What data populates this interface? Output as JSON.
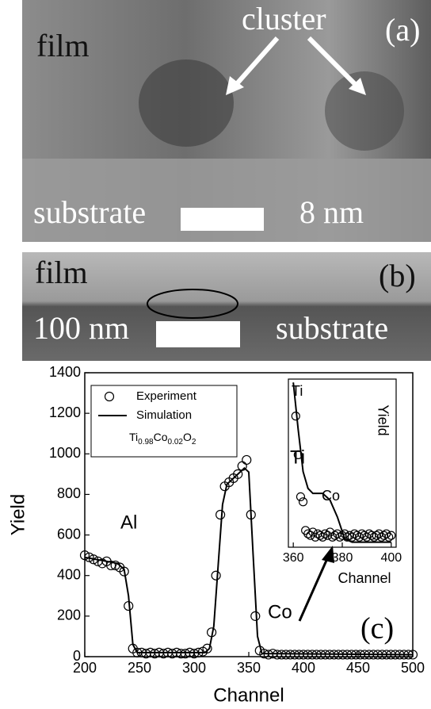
{
  "panels": [
    {
      "labels": [
        "film",
        "cluster",
        "(a)",
        "substrate",
        "8 nm"
      ]
    },
    {
      "labels": [
        "film",
        "(b)",
        "100 nm",
        "substrate"
      ]
    }
  ],
  "chart_data": [
    {
      "type": "line",
      "xlabel": "Channel",
      "ylabel": "Yield",
      "xlim": [
        200,
        500
      ],
      "ylim": [
        0,
        1400
      ],
      "xticks": [
        200,
        250,
        300,
        350,
        400,
        450,
        500
      ],
      "yticks": [
        0,
        200,
        400,
        600,
        800,
        1000,
        1200,
        1400
      ],
      "legend_note": [
        "Ti",
        "0.98",
        "Co",
        "0.02",
        "O",
        "2"
      ],
      "annotations": [
        "Al",
        "Ti",
        "Co",
        "(c)"
      ],
      "series": [
        {
          "name": "Experiment",
          "color": "#000000",
          "mode": "markers",
          "x": [
            200,
            204,
            208,
            212,
            216,
            220,
            224,
            228,
            232,
            236,
            240,
            244,
            248,
            252,
            256,
            260,
            264,
            268,
            272,
            276,
            280,
            284,
            288,
            292,
            296,
            300,
            304,
            308,
            312,
            316,
            320,
            324,
            328,
            332,
            336,
            340,
            344,
            348,
            352,
            356,
            360,
            364,
            368,
            372,
            376,
            380,
            384,
            388,
            392,
            396,
            400,
            404,
            408,
            412,
            416,
            420,
            424,
            428,
            432,
            436,
            440,
            444,
            448,
            452,
            456,
            460,
            464,
            468,
            472,
            476,
            480,
            484,
            488,
            492,
            496,
            500
          ],
          "values": [
            500,
            490,
            480,
            470,
            460,
            470,
            450,
            450,
            440,
            420,
            250,
            40,
            20,
            20,
            15,
            20,
            15,
            20,
            15,
            20,
            15,
            20,
            15,
            15,
            20,
            15,
            20,
            25,
            40,
            120,
            400,
            700,
            840,
            860,
            880,
            900,
            940,
            970,
            700,
            200,
            30,
            15,
            10,
            15,
            10,
            10,
            10,
            10,
            10,
            10,
            10,
            10,
            10,
            10,
            10,
            10,
            10,
            10,
            10,
            10,
            10,
            10,
            10,
            10,
            10,
            10,
            10,
            10,
            10,
            10,
            10,
            10,
            10,
            10,
            10,
            10
          ]
        },
        {
          "name": "Simulation",
          "color": "#000000",
          "mode": "lines",
          "x": [
            200,
            230,
            236,
            240,
            244,
            248,
            310,
            314,
            318,
            322,
            326,
            330,
            340,
            346,
            350,
            354,
            358,
            362,
            500
          ],
          "values": [
            490,
            460,
            430,
            300,
            60,
            20,
            20,
            40,
            150,
            450,
            750,
            850,
            900,
            930,
            910,
            500,
            100,
            15,
            10
          ]
        }
      ]
    },
    {
      "type": "line",
      "xlabel": "Channel",
      "ylabel": "Yield",
      "xlim": [
        358,
        402
      ],
      "ylim": [
        0,
        100
      ],
      "xticks": [
        360,
        380,
        400
      ],
      "annotations": [
        "Ti",
        "Co"
      ],
      "series": [
        {
          "color": "#000000",
          "mode": "markers",
          "x": [
            361,
            362,
            363,
            364,
            365,
            366,
            367,
            368,
            369,
            370,
            371,
            372,
            373,
            374,
            375,
            376,
            377,
            378,
            379,
            380,
            381,
            382,
            383,
            384,
            385,
            386,
            387,
            388,
            389,
            390,
            391,
            392,
            393,
            394,
            395,
            396,
            397,
            398,
            399,
            400
          ],
          "values": [
            78,
            55,
            30,
            27,
            10,
            8,
            7,
            9,
            6,
            8,
            7,
            6,
            8,
            7,
            9,
            6,
            7,
            8,
            6,
            7,
            8,
            6,
            7,
            6,
            8,
            7,
            6,
            8,
            7,
            6,
            8,
            7,
            6,
            7,
            8,
            6,
            7,
            8,
            6,
            7
          ]
        },
        {
          "color": "#000000",
          "mode": "lines",
          "x": [
            360,
            362,
            364,
            366,
            368,
            372,
            375,
            378,
            381,
            384,
            400
          ],
          "values": [
            98,
            70,
            45,
            35,
            32,
            32,
            28,
            18,
            5,
            3,
            3
          ]
        }
      ]
    }
  ]
}
